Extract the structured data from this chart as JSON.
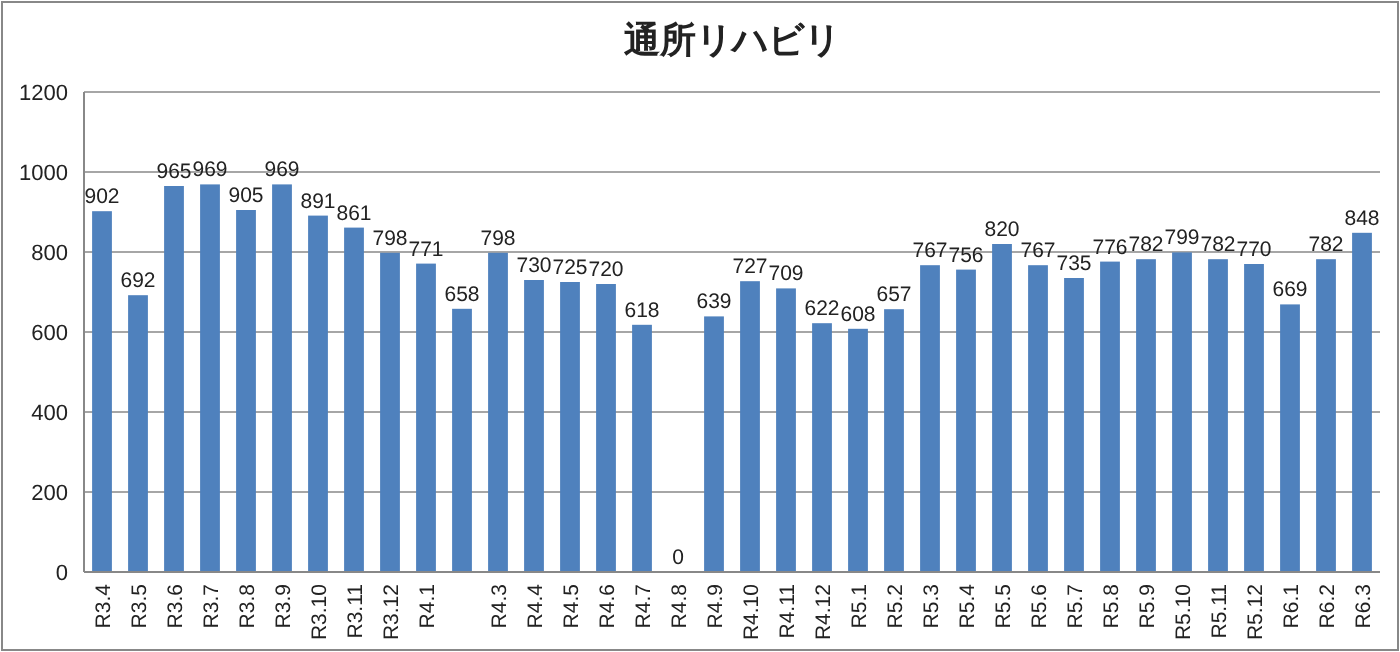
{
  "chart_data": {
    "type": "bar",
    "title": "通所リハビリ",
    "categories": [
      "R3.4",
      "R3.5",
      "R3.6",
      "R3.7",
      "R3.8",
      "R3.9",
      "R3.10",
      "R3.11",
      "R3.12",
      "R4.1",
      null,
      "R4.3",
      "R4.4",
      "R4.5",
      "R4.6",
      "R4.7",
      "R4.8",
      "R4.9",
      "R4.10",
      "R4.11",
      "R4.12",
      "R5.1",
      "R5.2",
      "R5.3",
      "R5.4",
      "R5.5",
      "R5.6",
      "R5.7",
      "R5.8",
      "R5.9",
      "R5.10",
      "R5.11",
      "R5.12",
      "R6.1",
      "R6.2",
      "R6.3"
    ],
    "values": [
      902,
      692,
      965,
      969,
      905,
      969,
      891,
      861,
      798,
      771,
      658,
      798,
      730,
      725,
      720,
      618,
      0,
      639,
      727,
      709,
      622,
      608,
      657,
      767,
      756,
      820,
      767,
      735,
      776,
      782,
      799,
      782,
      770,
      669,
      782,
      848
    ],
    "color": "#4f81bd",
    "ylim": [
      0,
      1200
    ],
    "yticks": [
      0,
      200,
      400,
      600,
      800,
      1000,
      1200
    ],
    "grid": "y",
    "data_labels": true
  }
}
